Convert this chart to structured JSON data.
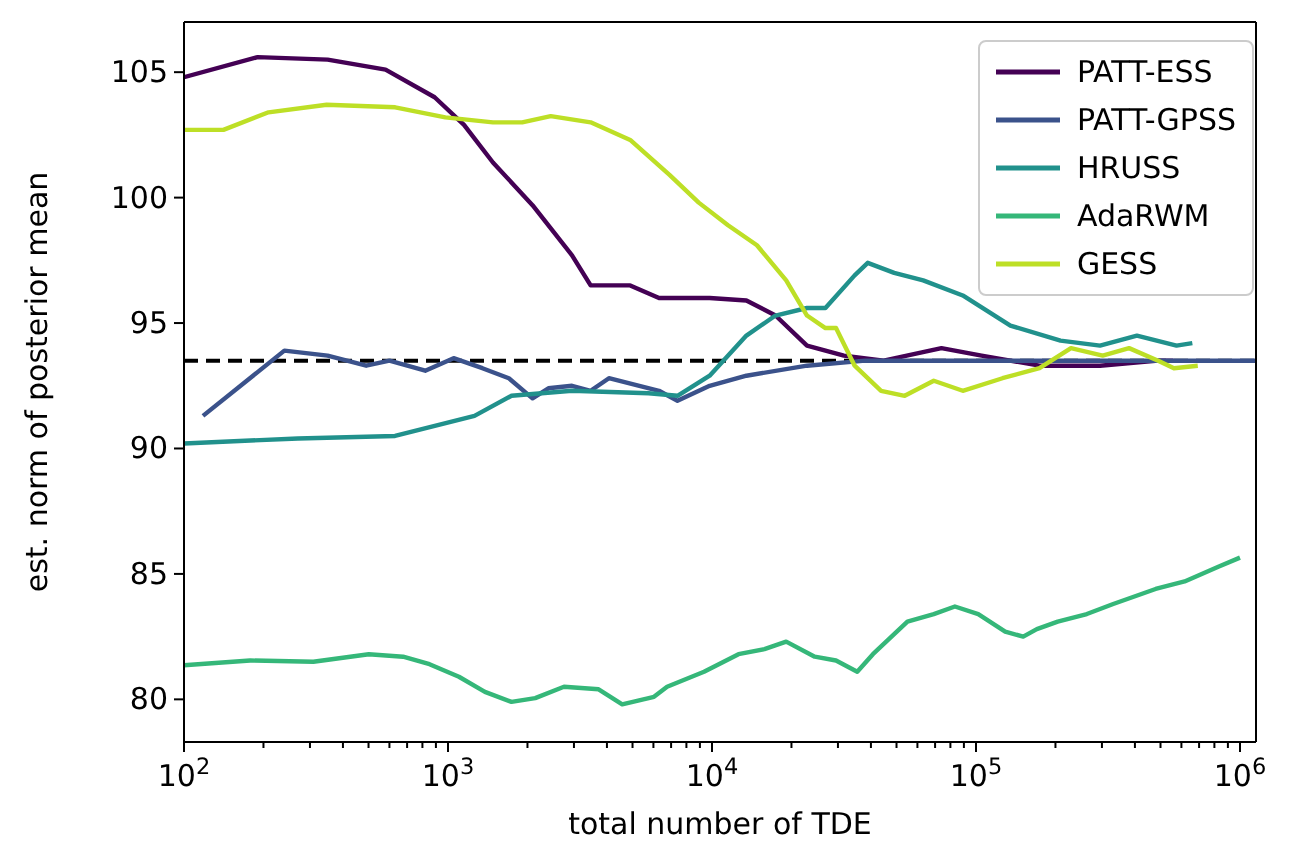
{
  "chart_data": {
    "type": "line",
    "xlabel": "total number of TDE",
    "ylabel": "est. norm of posterior mean",
    "log": "x",
    "xlim": [
      100,
      1150000
    ],
    "ylim": [
      78.3,
      107
    ],
    "xticks": [
      {
        "value": 100,
        "label": "10$^{2}$"
      },
      {
        "value": 200,
        "label": null
      },
      {
        "value": 300,
        "label": null
      },
      {
        "value": 400,
        "label": null
      },
      {
        "value": 500,
        "label": null
      },
      {
        "value": 600,
        "label": null
      },
      {
        "value": 700,
        "label": null
      },
      {
        "value": 800,
        "label": null
      },
      {
        "value": 900,
        "label": null
      },
      {
        "value": 1000,
        "label": "10$^{3}$"
      },
      {
        "value": 2000,
        "label": null
      },
      {
        "value": 3000,
        "label": null
      },
      {
        "value": 4000,
        "label": null
      },
      {
        "value": 5000,
        "label": null
      },
      {
        "value": 6000,
        "label": null
      },
      {
        "value": 7000,
        "label": null
      },
      {
        "value": 8000,
        "label": null
      },
      {
        "value": 9000,
        "label": null
      },
      {
        "value": 10000,
        "label": "10$^{4}$"
      },
      {
        "value": 20000,
        "label": null
      },
      {
        "value": 30000,
        "label": null
      },
      {
        "value": 40000,
        "label": null
      },
      {
        "value": 50000,
        "label": null
      },
      {
        "value": 60000,
        "label": null
      },
      {
        "value": 70000,
        "label": null
      },
      {
        "value": 80000,
        "label": null
      },
      {
        "value": 90000,
        "label": null
      },
      {
        "value": 100000,
        "label": "10$^{5}$"
      },
      {
        "value": 200000,
        "label": null
      },
      {
        "value": 300000,
        "label": null
      },
      {
        "value": 400000,
        "label": null
      },
      {
        "value": 500000,
        "label": null
      },
      {
        "value": 600000,
        "label": null
      },
      {
        "value": 700000,
        "label": null
      },
      {
        "value": 800000,
        "label": null
      },
      {
        "value": 900000,
        "label": null
      },
      {
        "value": 1000000,
        "label": "10$^{6}$"
      }
    ],
    "yticks": [
      80,
      85,
      90,
      95,
      100,
      105
    ],
    "legend": "top right",
    "marker": "none",
    "line_style": "solid",
    "ref_lines": [
      {
        "axis": "y",
        "value": 93.5,
        "label": null,
        "color": "#000000",
        "line_style": "dashed"
      }
    ],
    "series": [
      {
        "name": "PATT-ESS",
        "color": "#440154",
        "x": [
          100,
          190,
          350,
          580,
          890,
          1150,
          1480,
          2090,
          2950,
          3470,
          4900,
          6300,
          9800,
          13500,
          17400,
          22900,
          31600,
          44700,
          74000,
          105000,
          174000,
          295000,
          490000,
          560000
        ],
        "values": [
          104.8,
          105.6,
          105.5,
          105.1,
          104,
          102.9,
          101.4,
          99.7,
          97.7,
          96.5,
          96.5,
          96,
          96,
          95.9,
          95.3,
          94.1,
          93.7,
          93.5,
          94,
          93.7,
          93.3,
          93.3,
          93.5,
          93.5
        ]
      },
      {
        "name": "PATT-GPSS",
        "color": "#3b528b",
        "x": [
          118,
          240,
          350,
          490,
          600,
          820,
          1050,
          1350,
          1700,
          2090,
          2400,
          2950,
          3470,
          4070,
          6300,
          7400,
          9800,
          13500,
          22900,
          38000,
          100000,
          300000,
          1000000,
          1150000
        ],
        "values": [
          91.3,
          93.9,
          93.7,
          93.3,
          93.5,
          93.1,
          93.6,
          93.2,
          92.8,
          92,
          92.4,
          92.5,
          92.3,
          92.8,
          92.3,
          91.9,
          92.5,
          92.9,
          93.3,
          93.5,
          93.5,
          93.5,
          93.5,
          93.5
        ]
      },
      {
        "name": "HRUSS",
        "color": "#21918c",
        "x": [
          100,
          270,
          630,
          1260,
          1740,
          2950,
          5750,
          7400,
          9800,
          13500,
          17400,
          22900,
          26900,
          34700,
          38900,
          49000,
          63100,
          89100,
          135000,
          209000,
          295000,
          407000,
          575000,
          660000
        ],
        "values": [
          90.2,
          90.4,
          90.5,
          91.3,
          92.1,
          92.3,
          92.2,
          92.1,
          92.9,
          94.5,
          95.3,
          95.6,
          95.6,
          96.9,
          97.4,
          97,
          96.7,
          96.1,
          94.9,
          94.3,
          94.1,
          94.5,
          94.1,
          94.2
        ]
      },
      {
        "name": "AdaRWM",
        "color": "#35b779",
        "x": [
          100,
          178,
          309,
          501,
          676,
          851,
          1100,
          1380,
          1740,
          2140,
          2750,
          3720,
          4570,
          6030,
          6760,
          9330,
          12600,
          15800,
          19100,
          24500,
          29500,
          35500,
          40700,
          55000,
          69200,
          83200,
          102000,
          129000,
          151000,
          170000,
          204000,
          263000,
          331000,
          479000,
          617000,
          832000,
          1000000
        ],
        "values": [
          81.36,
          81.55,
          81.5,
          81.8,
          81.7,
          81.4,
          80.9,
          80.3,
          79.9,
          80.05,
          80.5,
          80.4,
          79.8,
          80.1,
          80.5,
          81.1,
          81.8,
          82,
          82.3,
          81.7,
          81.55,
          81.1,
          81.8,
          83.1,
          83.4,
          83.7,
          83.4,
          82.7,
          82.5,
          82.8,
          83.1,
          83.4,
          83.8,
          84.4,
          84.7,
          85.3,
          85.65
        ]
      },
      {
        "name": "GESS",
        "color": "#bddf26",
        "x": [
          100,
          141,
          209,
          347,
          631,
          977,
          1480,
          1910,
          2450,
          3470,
          4900,
          6920,
          8910,
          11500,
          14800,
          19100,
          22900,
          26900,
          29500,
          34700,
          43700,
          53700,
          69200,
          89100,
          126000,
          174000,
          229000,
          302000,
          380000,
          490000,
          562000,
          692000
        ],
        "values": [
          102.7,
          102.7,
          103.4,
          103.7,
          103.6,
          103.2,
          103,
          103,
          103.25,
          103,
          102.3,
          100.9,
          99.8,
          98.9,
          98.1,
          96.7,
          95.3,
          94.8,
          94.8,
          93.3,
          92.3,
          92.1,
          92.7,
          92.3,
          92.8,
          93.2,
          94,
          93.7,
          94,
          93.5,
          93.2,
          93.3
        ]
      }
    ]
  }
}
